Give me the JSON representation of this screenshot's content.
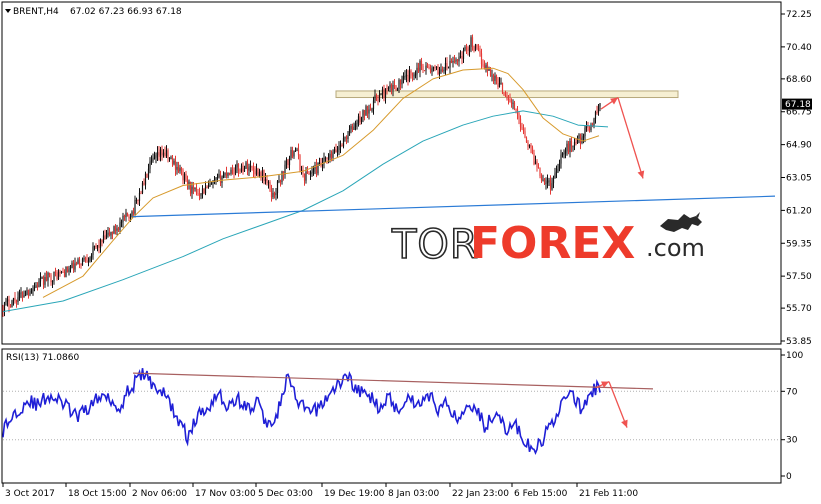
{
  "header": {
    "symbol": "BRENT,H4",
    "ohlc": "67.02 67.23 66.93 67.18",
    "rsi_label": "RSI(13) 71.0860"
  },
  "watermark": {
    "tor": "TOR",
    "forex": "FOREX",
    "com": ".com"
  },
  "colors": {
    "candle_up": "#111111",
    "candle_down": "#e53935",
    "ma_fast": "#d79a2c",
    "ma_slow": "#2aa6b8",
    "trendline": "#2b7bd6",
    "zone_fill": "#f6efd2",
    "zone_stroke": "#b7a87c",
    "arrow": "#ef5350",
    "rsi_line": "#1f1fd6",
    "rsi_trend": "#a86060",
    "last_price_bg": "#000000"
  },
  "chart_data": [
    {
      "type": "candlestick",
      "title": "BRENT,H4",
      "y_ticks": [
        "72.25",
        "70.40",
        "68.60",
        "66.75",
        "64.90",
        "63.05",
        "61.20",
        "59.35",
        "57.50",
        "55.70",
        "53.85"
      ],
      "ylim": [
        53.85,
        72.25
      ],
      "last_price": "67.18",
      "x_ticks": [
        "3 Oct 2017",
        "18 Oct 15:00",
        "2 Nov 06:00",
        "17 Nov 03:00",
        "5 Dec 03:00",
        "19 Dec 19:00",
        "8 Jan 03:00",
        "22 Jan 23:00",
        "6 Feb 15:00",
        "21 Feb 11:00"
      ],
      "price_path": [
        [
          0,
          55.8
        ],
        [
          20,
          56.5
        ],
        [
          45,
          57.4
        ],
        [
          65,
          57.8
        ],
        [
          85,
          58.6
        ],
        [
          100,
          59.5
        ],
        [
          115,
          60.3
        ],
        [
          130,
          61.2
        ],
        [
          148,
          63.8
        ],
        [
          160,
          64.5
        ],
        [
          175,
          63.6
        ],
        [
          190,
          62.2
        ],
        [
          205,
          62.4
        ],
        [
          225,
          63.4
        ],
        [
          245,
          63.7
        ],
        [
          260,
          63.2
        ],
        [
          270,
          62.0
        ],
        [
          282,
          63.6
        ],
        [
          292,
          64.8
        ],
        [
          300,
          63.1
        ],
        [
          315,
          63.6
        ],
        [
          330,
          64.3
        ],
        [
          345,
          65.5
        ],
        [
          360,
          66.6
        ],
        [
          375,
          67.6
        ],
        [
          390,
          68.1
        ],
        [
          405,
          68.7
        ],
        [
          418,
          69.4
        ],
        [
          432,
          69.0
        ],
        [
          445,
          69.3
        ],
        [
          460,
          70.0
        ],
        [
          468,
          70.7
        ],
        [
          480,
          69.5
        ],
        [
          495,
          68.4
        ],
        [
          510,
          67.1
        ],
        [
          520,
          65.8
        ],
        [
          530,
          64.2
        ],
        [
          540,
          63.0
        ],
        [
          548,
          62.6
        ],
        [
          558,
          64.3
        ],
        [
          568,
          64.9
        ],
        [
          578,
          65.3
        ],
        [
          588,
          66.0
        ],
        [
          598,
          67.3
        ]
      ],
      "ma_fast_path": [
        [
          40,
          56.3
        ],
        [
          80,
          57.5
        ],
        [
          110,
          59.5
        ],
        [
          130,
          60.8
        ],
        [
          150,
          61.9
        ],
        [
          180,
          62.6
        ],
        [
          220,
          62.9
        ],
        [
          260,
          63.1
        ],
        [
          300,
          63.4
        ],
        [
          340,
          64.3
        ],
        [
          370,
          65.7
        ],
        [
          400,
          67.5
        ],
        [
          430,
          68.6
        ],
        [
          460,
          69.1
        ],
        [
          490,
          69.2
        ],
        [
          505,
          68.9
        ],
        [
          520,
          68.0
        ],
        [
          540,
          66.4
        ],
        [
          560,
          65.5
        ],
        [
          580,
          65.1
        ],
        [
          596,
          65.4
        ]
      ],
      "ma_slow_path": [
        [
          0,
          55.5
        ],
        [
          60,
          56.1
        ],
        [
          120,
          57.3
        ],
        [
          180,
          58.6
        ],
        [
          220,
          59.6
        ],
        [
          260,
          60.4
        ],
        [
          300,
          61.2
        ],
        [
          340,
          62.3
        ],
        [
          380,
          63.8
        ],
        [
          420,
          65.1
        ],
        [
          460,
          66.0
        ],
        [
          490,
          66.5
        ],
        [
          520,
          66.8
        ],
        [
          550,
          66.5
        ],
        [
          575,
          66.0
        ],
        [
          605,
          65.9
        ]
      ],
      "trendline_path": [
        [
          130,
          60.85
        ],
        [
          772,
          62.0
        ]
      ],
      "resistance_zone": [
        67.55,
        67.92
      ],
      "projected_path": [
        [
          598,
          66.9
        ],
        [
          615,
          67.55
        ],
        [
          640,
          63.0
        ]
      ]
    },
    {
      "type": "line",
      "title": "RSI(13) 71.0860",
      "y_ticks": [
        "100",
        "70",
        "30",
        "0"
      ],
      "ylim": [
        0,
        100
      ],
      "levels": [
        70,
        30
      ],
      "rsi_path": [
        [
          0,
          38
        ],
        [
          12,
          52
        ],
        [
          25,
          63
        ],
        [
          35,
          58
        ],
        [
          45,
          67
        ],
        [
          60,
          60
        ],
        [
          75,
          48
        ],
        [
          90,
          61
        ],
        [
          105,
          68
        ],
        [
          115,
          55
        ],
        [
          125,
          70
        ],
        [
          140,
          85
        ],
        [
          150,
          76
        ],
        [
          165,
          64
        ],
        [
          175,
          46
        ],
        [
          185,
          32
        ],
        [
          195,
          50
        ],
        [
          205,
          57
        ],
        [
          215,
          70
        ],
        [
          225,
          56
        ],
        [
          235,
          64
        ],
        [
          245,
          55
        ],
        [
          255,
          61
        ],
        [
          265,
          40
        ],
        [
          275,
          54
        ],
        [
          285,
          82
        ],
        [
          295,
          59
        ],
        [
          310,
          52
        ],
        [
          320,
          61
        ],
        [
          330,
          71
        ],
        [
          345,
          83
        ],
        [
          355,
          70
        ],
        [
          365,
          67
        ],
        [
          375,
          58
        ],
        [
          385,
          65
        ],
        [
          395,
          55
        ],
        [
          405,
          66
        ],
        [
          415,
          59
        ],
        [
          425,
          68
        ],
        [
          435,
          56
        ],
        [
          445,
          60
        ],
        [
          455,
          45
        ],
        [
          465,
          62
        ],
        [
          475,
          55
        ],
        [
          482,
          39
        ],
        [
          492,
          55
        ],
        [
          502,
          38
        ],
        [
          512,
          43
        ],
        [
          522,
          27
        ],
        [
          532,
          20
        ],
        [
          540,
          31
        ],
        [
          550,
          45
        ],
        [
          560,
          63
        ],
        [
          570,
          67
        ],
        [
          578,
          55
        ],
        [
          585,
          64
        ],
        [
          593,
          73
        ],
        [
          598,
          71
        ]
      ],
      "rsi_trend_path": [
        [
          130,
          85
        ],
        [
          650,
          72
        ]
      ],
      "rsi_projection": [
        [
          593,
          73
        ],
        [
          606,
          78
        ],
        [
          624,
          40
        ]
      ]
    }
  ]
}
